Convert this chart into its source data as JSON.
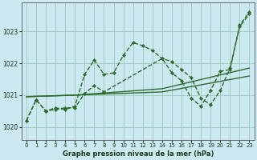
{
  "xlabel": "Graphe pression niveau de la mer (hPa)",
  "bg_color": "#cce8f0",
  "grid_color": "#99ccbb",
  "line_color": "#2d6a2d",
  "xlim": [
    -0.5,
    23.5
  ],
  "ylim": [
    1019.6,
    1023.9
  ],
  "yticks": [
    1020,
    1021,
    1022,
    1023
  ],
  "xticks": [
    0,
    1,
    2,
    3,
    4,
    5,
    6,
    7,
    8,
    9,
    10,
    11,
    12,
    13,
    14,
    15,
    16,
    17,
    18,
    19,
    20,
    21,
    22,
    23
  ],
  "lines": [
    {
      "x": [
        0,
        1,
        2,
        3,
        4,
        5,
        6,
        7,
        8,
        14,
        15,
        16,
        17,
        18,
        19,
        20,
        21,
        22,
        23
      ],
      "y": [
        1020.2,
        1020.85,
        1020.5,
        1020.55,
        1020.6,
        1020.6,
        1021.05,
        1021.3,
        1021.1,
        1022.15,
        1021.7,
        1021.45,
        1020.9,
        1020.65,
        1021.15,
        1021.75,
        1021.8,
        1023.2,
        1023.6
      ]
    },
    {
      "x": [
        0,
        1,
        2,
        3,
        4,
        5,
        6,
        7,
        8,
        9,
        10,
        11,
        12,
        13,
        14,
        15,
        16,
        17,
        18,
        19,
        20,
        21,
        22,
        23
      ],
      "y": [
        1020.2,
        1020.85,
        1020.5,
        1020.6,
        1020.55,
        1020.65,
        1021.65,
        1022.1,
        1021.65,
        1021.7,
        1022.25,
        1022.65,
        1022.55,
        1022.4,
        1022.15,
        1022.05,
        1021.8,
        1021.55,
        1020.9,
        1020.7,
        1021.15,
        1021.85,
        1023.15,
        1023.55
      ]
    },
    {
      "x": [
        0,
        5,
        14,
        23
      ],
      "y": [
        1020.95,
        1021.0,
        1021.2,
        1021.85
      ]
    },
    {
      "x": [
        0,
        5,
        14,
        23
      ],
      "y": [
        1020.95,
        1021.0,
        1021.1,
        1021.6
      ]
    }
  ]
}
